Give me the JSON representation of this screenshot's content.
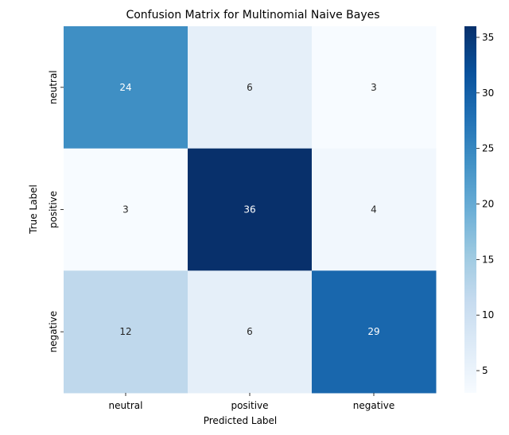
{
  "chart_data": {
    "type": "heatmap",
    "title": "Confusion Matrix for Multinomial Naive Bayes",
    "xlabel": "Predicted Label",
    "ylabel": "True Label",
    "x_categories": [
      "neutral",
      "positive",
      "negative"
    ],
    "y_categories": [
      "neutral",
      "positive",
      "negative"
    ],
    "values": [
      [
        24,
        6,
        3
      ],
      [
        3,
        36,
        4
      ],
      [
        12,
        6,
        29
      ]
    ],
    "colormap": "Blues",
    "colorbar": {
      "range": [
        3,
        36
      ],
      "ticks": [
        5,
        10,
        15,
        20,
        25,
        30,
        35
      ],
      "tick_labels": [
        "5",
        "10",
        "15",
        "20",
        "25",
        "30",
        "35"
      ]
    },
    "annotation_colors": {
      "light": "#ffffff",
      "dark": "#262626"
    }
  }
}
